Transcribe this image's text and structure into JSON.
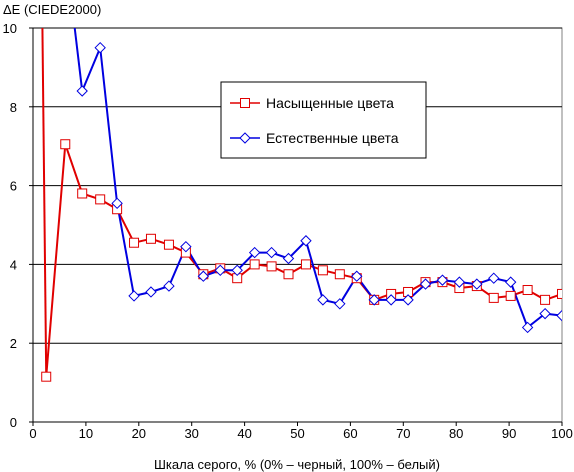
{
  "chart_data": {
    "type": "line",
    "ylabel": "ΔE (CIEDE2000)",
    "xlabel": "Шкала серого, % (0% – черный, 100% – белый)",
    "xlim": [
      0,
      100
    ],
    "ylim": [
      0,
      10
    ],
    "x_ticks": [
      0,
      10,
      20,
      30,
      40,
      50,
      60,
      70,
      80,
      90,
      100
    ],
    "y_ticks": [
      0,
      2,
      4,
      6,
      8,
      10
    ],
    "grid": "horizontal",
    "legend_position": "inside-upper-right",
    "series": [
      {
        "name": "Насыщенные цвета",
        "color": "#e00000",
        "marker": "square",
        "x": [
          2.5,
          6.1,
          9.3,
          12.7,
          15.9,
          19.1,
          22.3,
          25.7,
          28.9,
          32.2,
          35.4,
          38.6,
          41.9,
          45.1,
          48.3,
          51.6,
          54.8,
          58.0,
          61.2,
          64.5,
          67.7,
          70.9,
          74.2,
          77.4,
          80.6,
          83.9,
          87.1,
          90.3,
          93.5,
          96.8,
          100
        ],
        "y": [
          1.15,
          7.05,
          5.8,
          5.65,
          5.4,
          4.55,
          4.65,
          4.5,
          4.3,
          3.75,
          3.9,
          3.65,
          4.0,
          3.95,
          3.75,
          4.0,
          3.85,
          3.75,
          3.65,
          3.1,
          3.25,
          3.3,
          3.55,
          3.55,
          3.4,
          3.45,
          3.15,
          3.2,
          3.35,
          3.1,
          3.25
        ]
      },
      {
        "name": "Естественные цвета",
        "color": "#0000e0",
        "marker": "diamond",
        "x": [
          9.3,
          12.7,
          15.9,
          19.1,
          22.3,
          25.7,
          28.9,
          32.2,
          35.4,
          38.6,
          41.9,
          45.1,
          48.3,
          51.6,
          54.8,
          58.0,
          61.2,
          64.5,
          67.7,
          70.9,
          74.2,
          77.4,
          80.6,
          83.9,
          87.1,
          90.3,
          93.5,
          96.8,
          100
        ],
        "y": [
          8.4,
          9.5,
          5.55,
          3.2,
          3.3,
          3.45,
          4.45,
          3.7,
          3.85,
          3.85,
          4.3,
          4.3,
          4.15,
          4.6,
          3.1,
          3.0,
          3.7,
          3.1,
          3.1,
          3.1,
          3.5,
          3.6,
          3.55,
          3.5,
          3.65,
          3.55,
          2.4,
          2.75,
          2.7
        ]
      }
    ]
  }
}
